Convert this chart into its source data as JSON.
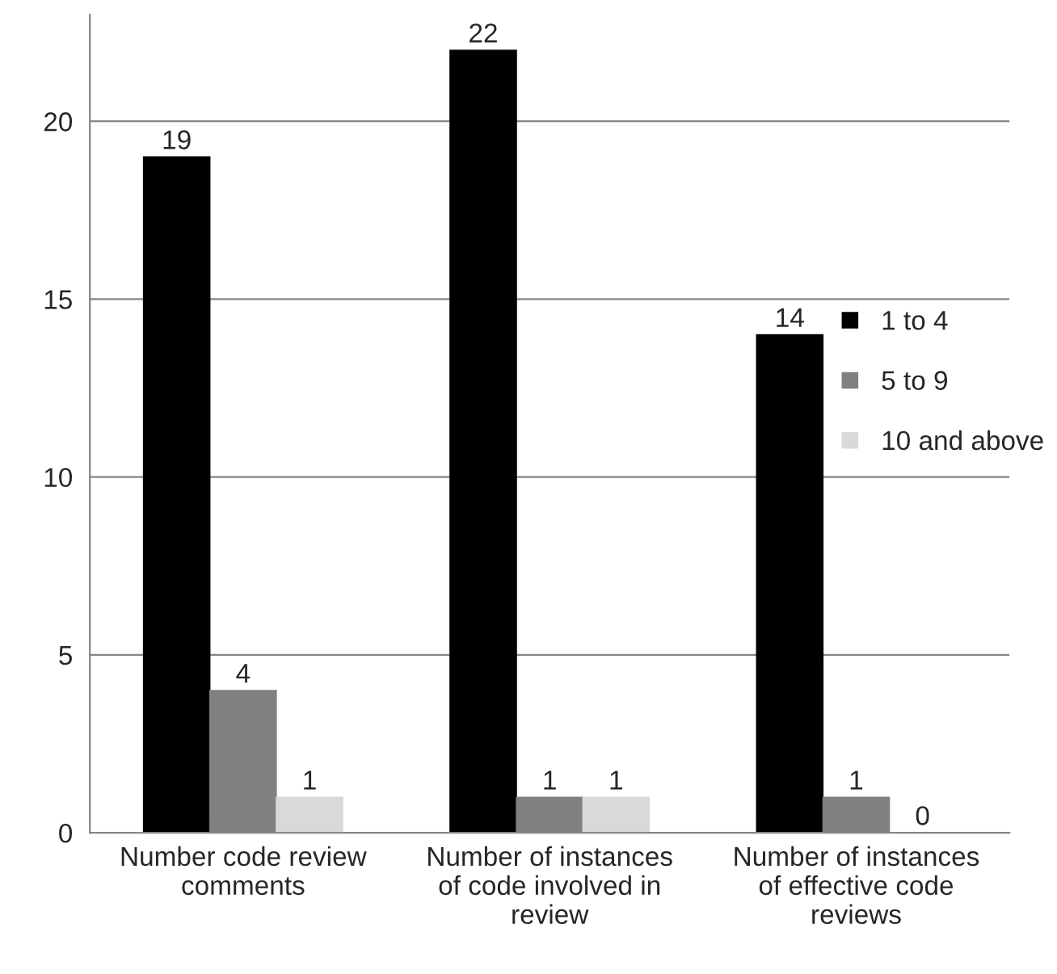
{
  "chart_data": {
    "type": "bar",
    "categories": [
      "Number code review comments",
      "Number of instances of code involved in review",
      "Number of instances of effective code reviews"
    ],
    "series": [
      {
        "name": "1 to 4",
        "color": "#000000",
        "values": [
          19,
          22,
          14
        ]
      },
      {
        "name": "5 to 9",
        "color": "#808080",
        "values": [
          4,
          1,
          1
        ]
      },
      {
        "name": "10 and above",
        "color": "#d9d9d9",
        "values": [
          1,
          1,
          0
        ]
      }
    ],
    "ylim": [
      0,
      23
    ],
    "yticks": [
      0,
      5,
      10,
      15,
      20
    ],
    "grid": "y",
    "legend": "right",
    "data_labels": true
  }
}
